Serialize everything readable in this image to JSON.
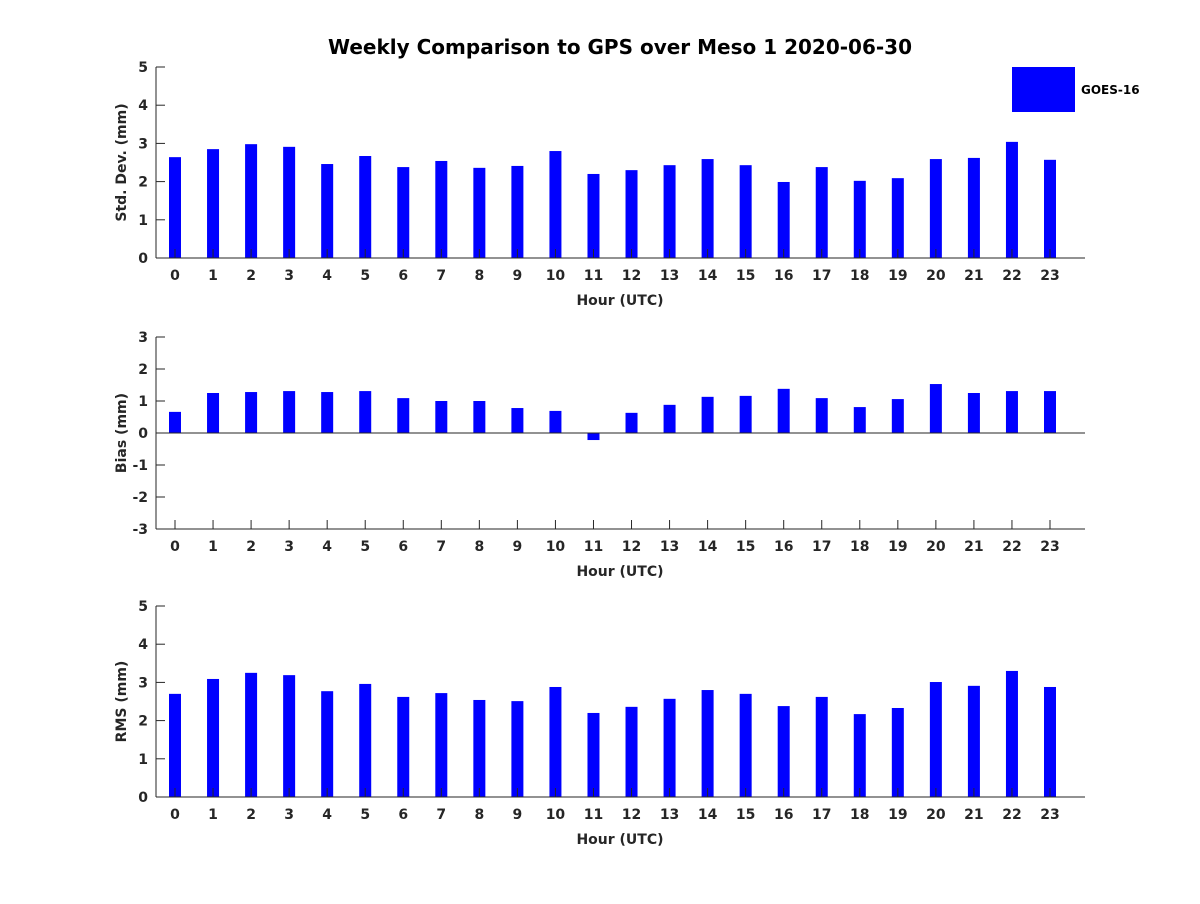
{
  "chart_data": {
    "title": "Weekly Comparison to GPS over Meso 1 2020-06-30",
    "legend": {
      "entries": [
        "GOES-16"
      ],
      "placement": "top-right",
      "color": "#0000ff"
    },
    "panels": [
      {
        "type": "bar",
        "xlabel": "Hour (UTC)",
        "ylabel": "Std. Dev. (mm)",
        "ylim": [
          0,
          5
        ],
        "yticks": [
          0,
          1,
          2,
          3,
          4,
          5
        ],
        "categories": [
          0,
          1,
          2,
          3,
          4,
          5,
          6,
          7,
          8,
          9,
          10,
          11,
          12,
          13,
          14,
          15,
          16,
          17,
          18,
          19,
          20,
          21,
          22,
          23
        ],
        "series": [
          {
            "name": "GOES-16",
            "values": [
              2.64,
              2.85,
              2.98,
              2.91,
              2.46,
              2.67,
              2.38,
              2.54,
              2.36,
              2.41,
              2.8,
              2.2,
              2.3,
              2.43,
              2.59,
              2.43,
              1.99,
              2.38,
              2.02,
              2.09,
              2.59,
              2.62,
              3.04,
              2.57
            ]
          }
        ]
      },
      {
        "type": "bar",
        "xlabel": "Hour (UTC)",
        "ylabel": "Bias (mm)",
        "ylim": [
          -3,
          3
        ],
        "yticks": [
          -3,
          -2,
          -1,
          0,
          1,
          2,
          3
        ],
        "categories": [
          0,
          1,
          2,
          3,
          4,
          5,
          6,
          7,
          8,
          9,
          10,
          11,
          12,
          13,
          14,
          15,
          16,
          17,
          18,
          19,
          20,
          21,
          22,
          23
        ],
        "series": [
          {
            "name": "GOES-16",
            "values": [
              0.66,
              1.25,
              1.28,
              1.31,
              1.28,
              1.31,
              1.09,
              1.0,
              1.0,
              0.78,
              0.69,
              -0.22,
              0.63,
              0.88,
              1.13,
              1.16,
              1.38,
              1.09,
              0.81,
              1.06,
              1.53,
              1.25,
              1.31,
              1.31
            ]
          }
        ]
      },
      {
        "type": "bar",
        "xlabel": "Hour (UTC)",
        "ylabel": "RMS (mm)",
        "ylim": [
          0,
          5
        ],
        "yticks": [
          0,
          1,
          2,
          3,
          4,
          5
        ],
        "categories": [
          0,
          1,
          2,
          3,
          4,
          5,
          6,
          7,
          8,
          9,
          10,
          11,
          12,
          13,
          14,
          15,
          16,
          17,
          18,
          19,
          20,
          21,
          22,
          23
        ],
        "series": [
          {
            "name": "GOES-16",
            "values": [
              2.7,
              3.09,
              3.25,
              3.19,
              2.77,
              2.96,
              2.62,
              2.72,
              2.54,
              2.51,
              2.88,
              2.2,
              2.36,
              2.57,
              2.8,
              2.7,
              2.38,
              2.62,
              2.17,
              2.33,
              3.01,
              2.91,
              3.3,
              2.88
            ]
          }
        ]
      }
    ]
  }
}
